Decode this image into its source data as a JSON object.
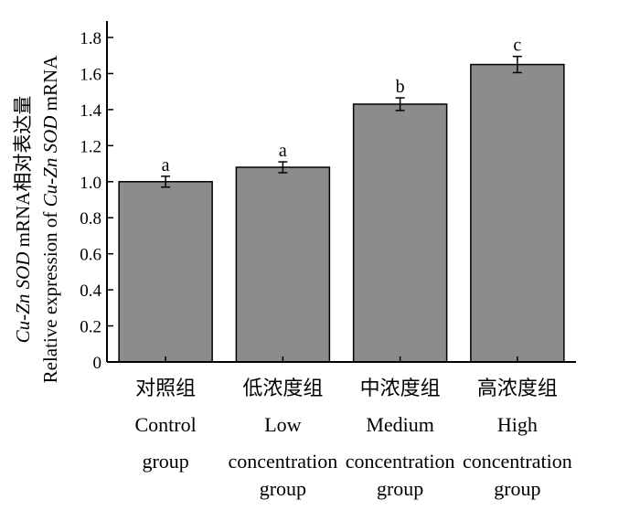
{
  "chart_data": {
    "type": "bar",
    "categories": [
      [
        "对照组",
        "Control",
        "group"
      ],
      [
        "低浓度组",
        "Low",
        "concentration",
        "group"
      ],
      [
        "中浓度组",
        "Medium",
        "concentration",
        "group"
      ],
      [
        "高浓度组",
        "High",
        "concentration",
        "group"
      ]
    ],
    "values": [
      1.0,
      1.08,
      1.43,
      1.65
    ],
    "errors": [
      0.03,
      0.03,
      0.035,
      0.045
    ],
    "significance": [
      "a",
      "a",
      "b",
      "c"
    ],
    "ylabel_cn": "Cu-Zn SOD mRNA相对表达量",
    "ylabel_en": "Relative expression of Cu-Zn SOD mRNA",
    "ylim": [
      0,
      1.8
    ],
    "yticks": [
      "0",
      "0.2",
      "0.4",
      "0.6",
      "0.8",
      "1.0",
      "1.2",
      "1.4",
      "1.6",
      "1.8"
    ],
    "bar_color": "#8c8c8c",
    "grid": false
  }
}
